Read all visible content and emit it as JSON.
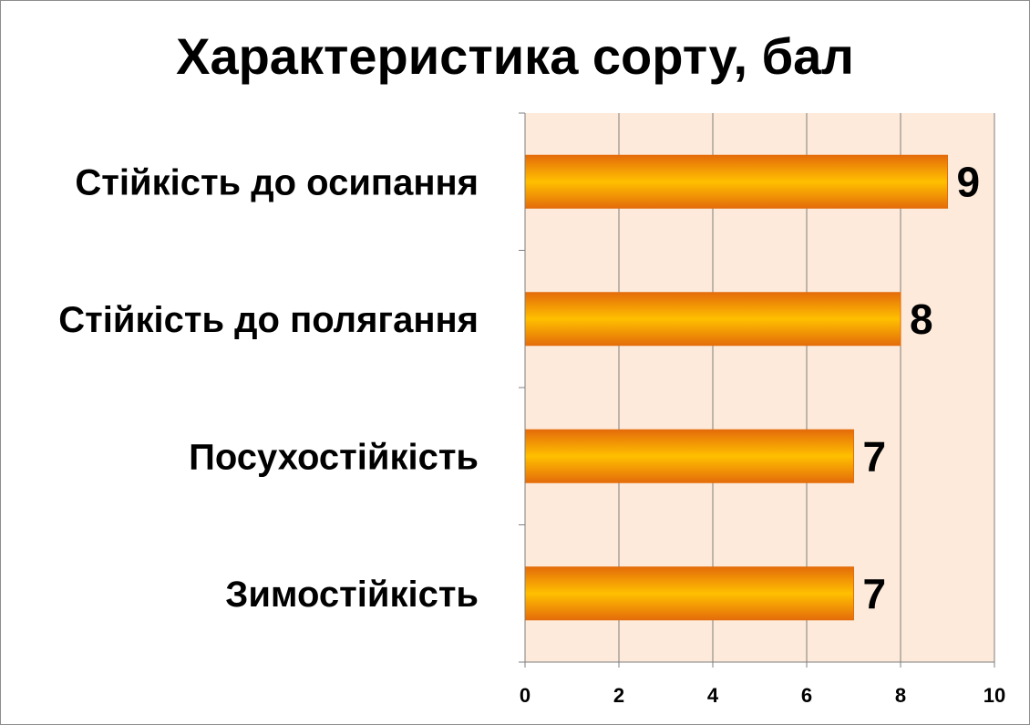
{
  "chart_data": {
    "type": "bar",
    "orientation": "horizontal",
    "title": "Характеристика сорту, бал",
    "categories": [
      "Стійкість до осипання",
      "Стійкість до полягання",
      "Посухостійкість",
      "Зимостійкість"
    ],
    "values": [
      9,
      8,
      7,
      7
    ],
    "data_labels": [
      "9",
      "8",
      "7",
      "7"
    ],
    "x_ticks": [
      "0",
      "2",
      "4",
      "6",
      "8",
      "10"
    ],
    "xlim": [
      0,
      10
    ],
    "xlabel": "",
    "ylabel": "",
    "grid": "vertical",
    "legend": "none",
    "colors": {
      "bar_edge": "#E46C0A",
      "bar_center": "#FFC000",
      "plot_background": "#FDEADA",
      "gridline": "#7F7F7F"
    }
  }
}
